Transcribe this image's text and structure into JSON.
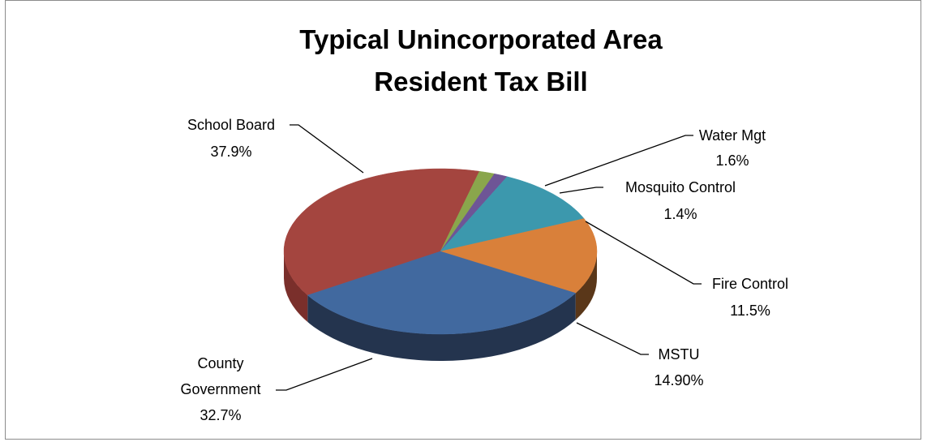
{
  "chart_data": {
    "type": "pie",
    "title_lines": [
      "Typical Unincorporated Area",
      "Resident Tax Bill"
    ],
    "slices": [
      {
        "name": "School Board",
        "display": "37.9%",
        "value": 37.9,
        "color": "#a4453f",
        "side": "#7a2f2b"
      },
      {
        "name": "Water Mgt",
        "display": "1.6%",
        "value": 1.6,
        "color": "#8aa64c",
        "side": "#5f7632"
      },
      {
        "name": "Mosquito Control",
        "display": "1.4%",
        "value": 1.4,
        "color": "#6e5596",
        "side": "#4c3a6a"
      },
      {
        "name": "Fire Control",
        "display": "11.5%",
        "value": 11.5,
        "color": "#3c98ad",
        "side": "#276a79"
      },
      {
        "name": "MSTU",
        "display": "14.90%",
        "value": 14.9,
        "color": "#d9803a",
        "side": "#5a3719"
      },
      {
        "name": "County Government",
        "display": "32.7%",
        "value": 32.7,
        "color": "#41699f",
        "side": "#24344e"
      }
    ],
    "labels": [
      {
        "lines": [
          "School Board",
          "37.9%"
        ]
      },
      {
        "lines": [
          "Water Mgt",
          "1.6%"
        ]
      },
      {
        "lines": [
          "Mosquito Control",
          "1.4%"
        ]
      },
      {
        "lines": [
          "Fire Control",
          "11.5%"
        ]
      },
      {
        "lines": [
          "MSTU",
          "14.90%"
        ]
      },
      {
        "lines": [
          "County",
          "Government",
          "32.7%"
        ]
      }
    ]
  }
}
